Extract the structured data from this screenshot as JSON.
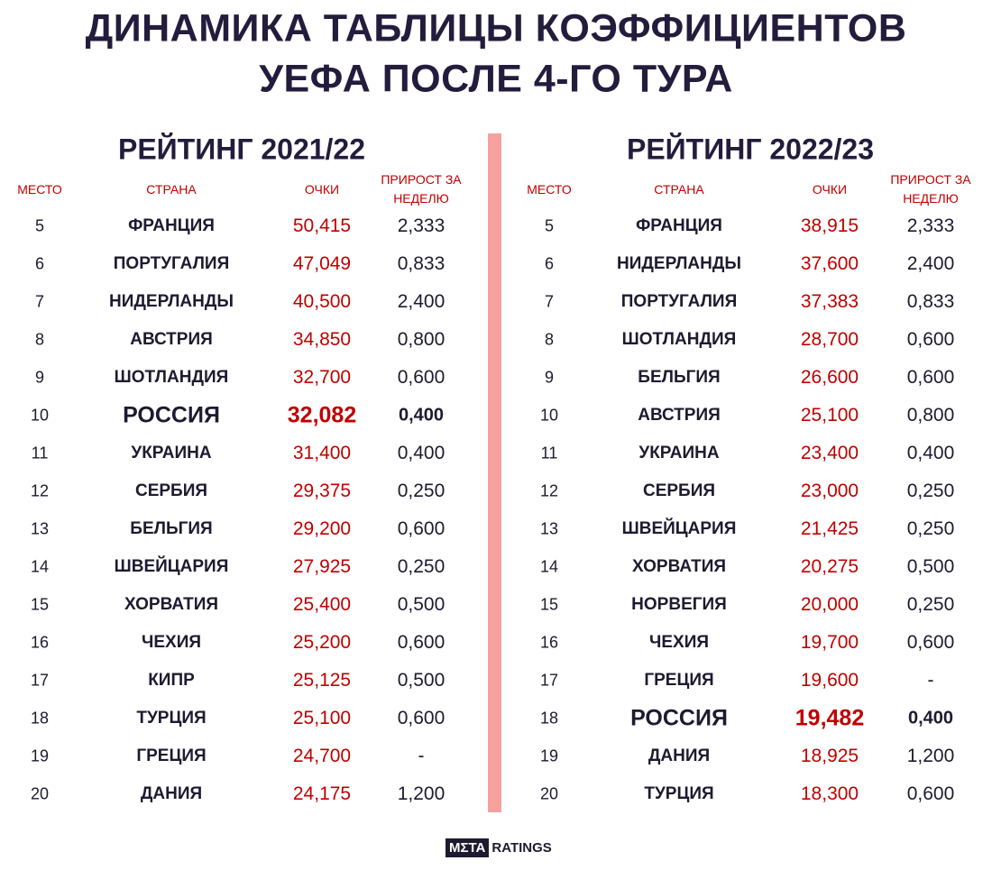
{
  "title": [
    "ДИНАМИКА ТАБЛИЦЫ КОЭФФИЦИЕНТОВ",
    "УЕФА ПОСЛЕ 4-ГО ТУРА"
  ],
  "tables": [
    {
      "title": "РЕЙТИНГ 2021/22",
      "headers": [
        "МЕСТО",
        "СТРАНА",
        "ОЧКИ",
        "ПРИРОСТ ЗА НЕДЕЛЮ"
      ],
      "highlighted_row": 5,
      "rows": [
        [
          "5",
          "ФРАНЦИЯ",
          "50,415",
          "2,333"
        ],
        [
          "6",
          "ПОРТУГАЛИЯ",
          "47,049",
          "0,833"
        ],
        [
          "7",
          "НИДЕРЛАНДЫ",
          "40,500",
          "2,400"
        ],
        [
          "8",
          "АВСТРИЯ",
          "34,850",
          "0,800"
        ],
        [
          "9",
          "ШОТЛАНДИЯ",
          "32,700",
          "0,600"
        ],
        [
          "10",
          "РОССИЯ",
          "32,082",
          "0,400"
        ],
        [
          "11",
          "УКРАИНА",
          "31,400",
          "0,400"
        ],
        [
          "12",
          "СЕРБИЯ",
          "29,375",
          "0,250"
        ],
        [
          "13",
          "БЕЛЬГИЯ",
          "29,200",
          "0,600"
        ],
        [
          "14",
          "ШВЕЙЦАРИЯ",
          "27,925",
          "0,250"
        ],
        [
          "15",
          "ХОРВАТИЯ",
          "25,400",
          "0,500"
        ],
        [
          "16",
          "ЧЕХИЯ",
          "25,200",
          "0,600"
        ],
        [
          "17",
          "КИПР",
          "25,125",
          "0,500"
        ],
        [
          "18",
          "ТУРЦИЯ",
          "25,100",
          "0,600"
        ],
        [
          "19",
          "ГРЕЦИЯ",
          "24,700",
          "-"
        ],
        [
          "20",
          "ДАНИЯ",
          "24,175",
          "1,200"
        ]
      ]
    },
    {
      "title": "РЕЙТИНГ 2022/23",
      "headers": [
        "МЕСТО",
        "СТРАНА",
        "ОЧКИ",
        "ПРИРОСТ ЗА НЕДЕЛЮ"
      ],
      "highlighted_row": 13,
      "rows": [
        [
          "5",
          "ФРАНЦИЯ",
          "38,915",
          "2,333"
        ],
        [
          "6",
          "НИДЕРЛАНДЫ",
          "37,600",
          "2,400"
        ],
        [
          "7",
          "ПОРТУГАЛИЯ",
          "37,383",
          "0,833"
        ],
        [
          "8",
          "ШОТЛАНДИЯ",
          "28,700",
          "0,600"
        ],
        [
          "9",
          "БЕЛЬГИЯ",
          "26,600",
          "0,600"
        ],
        [
          "10",
          "АВСТРИЯ",
          "25,100",
          "0,800"
        ],
        [
          "11",
          "УКРАИНА",
          "23,400",
          "0,400"
        ],
        [
          "12",
          "СЕРБИЯ",
          "23,000",
          "0,250"
        ],
        [
          "13",
          "ШВЕЙЦАРИЯ",
          "21,425",
          "0,250"
        ],
        [
          "14",
          "ХОРВАТИЯ",
          "20,275",
          "0,500"
        ],
        [
          "15",
          "НОРВЕГИЯ",
          "20,000",
          "0,250"
        ],
        [
          "16",
          "ЧЕХИЯ",
          "19,700",
          "0,600"
        ],
        [
          "17",
          "ГРЕЦИЯ",
          "19,600",
          "-"
        ],
        [
          "18",
          "РОССИЯ",
          "19,482",
          "0,400"
        ],
        [
          "19",
          "ДАНИЯ",
          "18,925",
          "1,200"
        ],
        [
          "20",
          "ТУРЦИЯ",
          "18,300",
          "0,600"
        ]
      ]
    }
  ],
  "logo": {
    "left": "MΣTA",
    "right": "RATINGS"
  }
}
